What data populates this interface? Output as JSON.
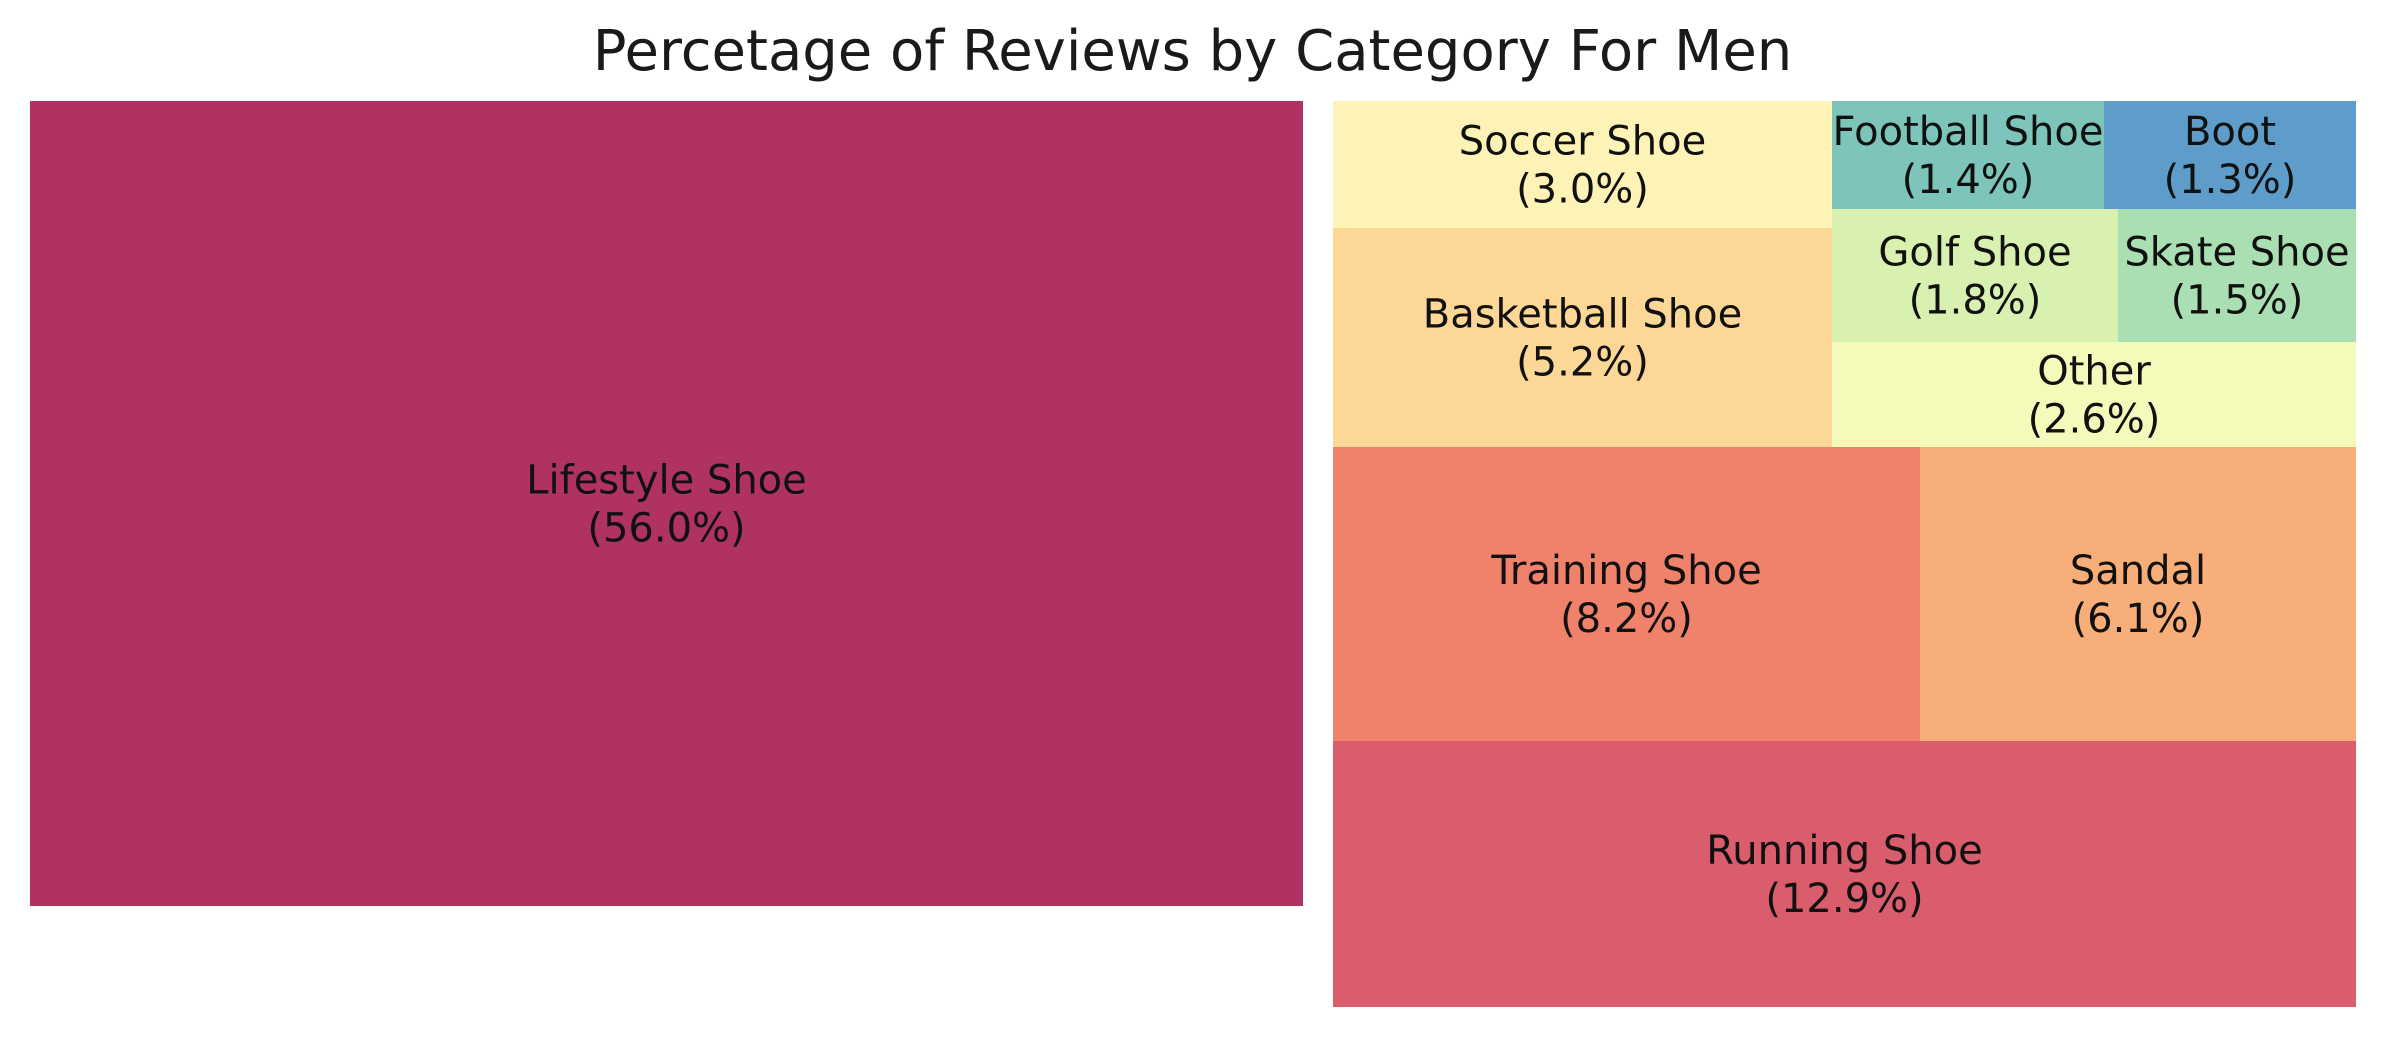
{
  "chart_data": {
    "type": "treemap",
    "title": "Percetage of Reviews by Category For Men",
    "items": [
      {
        "label": "Lifestyle Shoe",
        "percent": "56.0%",
        "value": 56.0,
        "color": "#b03263"
      },
      {
        "label": "Running Shoe",
        "percent": "12.9%",
        "value": 12.9,
        "color": "#da5d6e"
      },
      {
        "label": "Training Shoe",
        "percent": "8.2%",
        "value": 8.2,
        "color": "#f0826c"
      },
      {
        "label": "Sandal",
        "percent": "6.1%",
        "value": 6.1,
        "color": "#f8ae78"
      },
      {
        "label": "Basketball Shoe",
        "percent": "5.2%",
        "value": 5.2,
        "color": "#fdd796"
      },
      {
        "label": "Soccer Shoe",
        "percent": "3.0%",
        "value": 3.0,
        "color": "#fef3b6"
      },
      {
        "label": "Other",
        "percent": "2.6%",
        "value": 2.6,
        "color": "#f5f9ba"
      },
      {
        "label": "Golf Shoe",
        "percent": "1.8%",
        "value": 1.8,
        "color": "#d8f0b0"
      },
      {
        "label": "Skate Shoe",
        "percent": "1.5%",
        "value": 1.5,
        "color": "#aadfb4"
      },
      {
        "label": "Football Shoe",
        "percent": "1.4%",
        "value": 1.4,
        "color": "#7dc5bb"
      },
      {
        "label": "Boot",
        "percent": "1.3%",
        "value": 1.3,
        "color": "#5e9dca"
      }
    ]
  }
}
